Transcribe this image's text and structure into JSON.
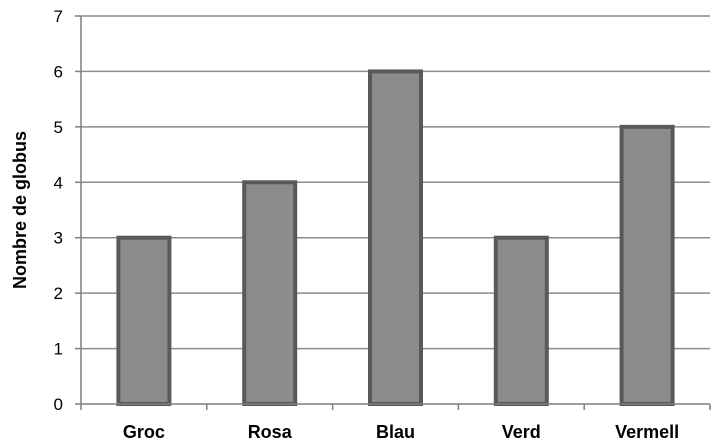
{
  "chart_data": {
    "type": "bar",
    "title": "",
    "xlabel": "",
    "ylabel": "Nombre de globus",
    "categories": [
      "Groc",
      "Rosa",
      "Blau",
      "Verd",
      "Vermell"
    ],
    "values": [
      3,
      4,
      6,
      3,
      5
    ],
    "ylim": [
      0,
      7
    ],
    "yticks": [
      0,
      1,
      2,
      3,
      4,
      5,
      6,
      7
    ],
    "grid": true,
    "legend": "none",
    "colors": {
      "bar_fill": "#8c8c8c",
      "bar_stroke": "#595959",
      "grid": "#8c8c8c",
      "axis": "#7f7f7f"
    }
  }
}
